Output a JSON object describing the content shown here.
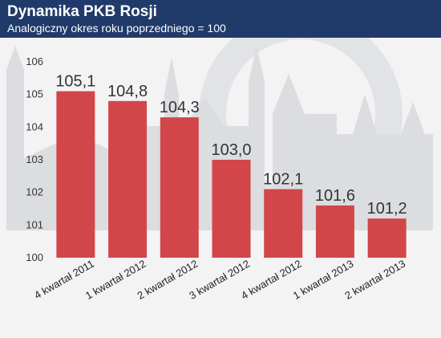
{
  "header": {
    "title": "Dynamika PKB Rosji",
    "subtitle": "Analogiczny okres roku poprzedniego = 100"
  },
  "colors": {
    "header_bg": "#203a6a",
    "bar": "#d2464a",
    "background_photo": "light grey Moscow Red Square silhouette"
  },
  "chart_data": {
    "type": "bar",
    "title": "Dynamika PKB Rosji",
    "subtitle": "Analogiczny okres roku poprzedniego = 100",
    "categories": [
      "4 kwartał 2011",
      "1 kwartał 2012",
      "2 kwartał 2012",
      "3 kwartał 2012",
      "4 kwartał 2012",
      "1 kwartał 2013",
      "2 kwartał 2013"
    ],
    "values": [
      105.1,
      104.8,
      104.3,
      103.0,
      102.1,
      101.6,
      101.2
    ],
    "value_labels": [
      "105,1",
      "104,8",
      "104,3",
      "103,0",
      "102,1",
      "101,6",
      "101,2"
    ],
    "yticks": [
      "100",
      "101",
      "102",
      "103",
      "104",
      "105",
      "106"
    ],
    "ylim": [
      100,
      106
    ],
    "xlabel": "",
    "ylabel": "",
    "grid": false,
    "legend": "none"
  }
}
